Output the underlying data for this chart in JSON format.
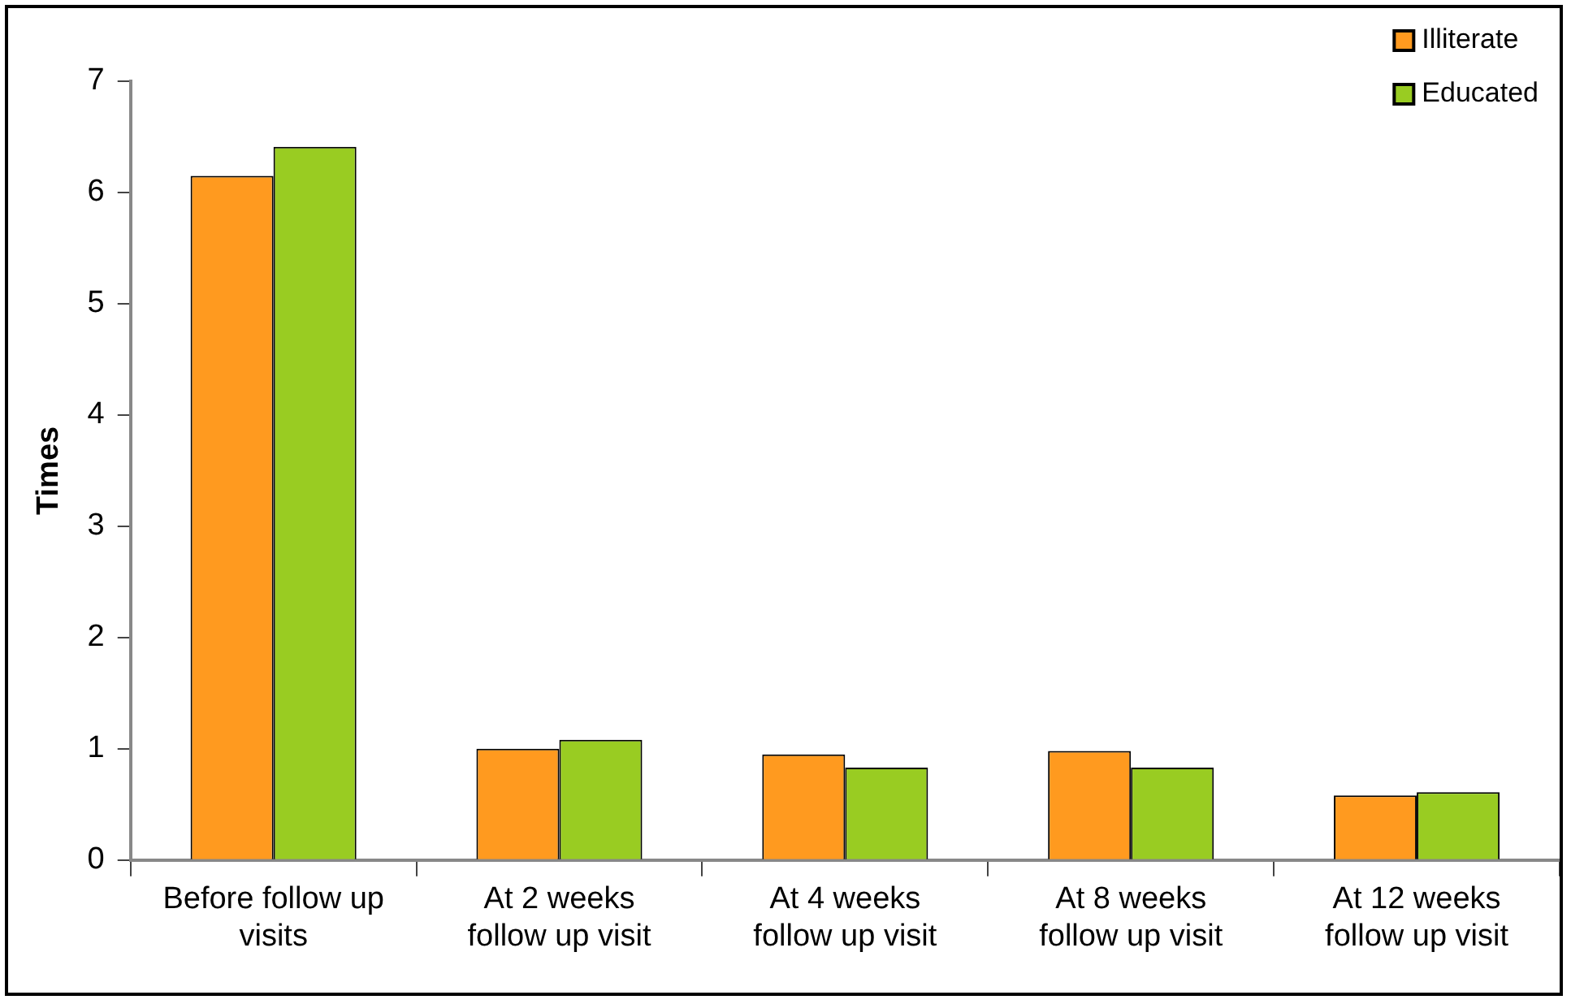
{
  "chart_data": {
    "type": "bar",
    "ylabel": "Times",
    "categories": [
      "Before follow up visits",
      "At 2 weeks follow up visit",
      "At 4 weeks follow up visit",
      "At 8 weeks follow up visit",
      "At 12 weeks follow up visit"
    ],
    "series": [
      {
        "name": "Illiterate",
        "color": "#ff9a1f",
        "values": [
          6.15,
          1.0,
          0.95,
          0.98,
          0.58
        ]
      },
      {
        "name": "Educated",
        "color": "#99cc22",
        "values": [
          6.41,
          1.08,
          0.83,
          0.83,
          0.61
        ]
      }
    ],
    "ylim": [
      0,
      7
    ],
    "yticks": [
      0,
      1,
      2,
      3,
      4,
      5,
      6,
      7
    ],
    "grid": false,
    "legend": "top right"
  }
}
